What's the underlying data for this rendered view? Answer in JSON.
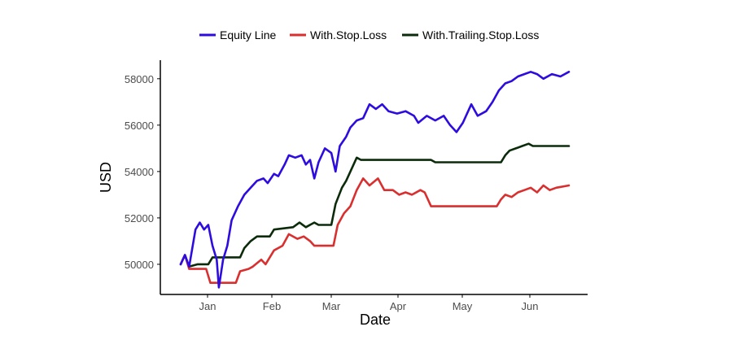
{
  "chart_data": {
    "type": "line",
    "xlabel": "Date",
    "ylabel": "USD",
    "x_ticks": [
      "Jan",
      "Feb",
      "Mar",
      "Apr",
      "May",
      "Jun"
    ],
    "y_ticks": [
      "50000",
      "52000",
      "54000",
      "56000",
      "58000"
    ],
    "x_range": [
      "2018-12-19",
      "2019-06-20"
    ],
    "ylim": [
      48700,
      58800
    ],
    "legend_position": "top",
    "grid": false,
    "series": [
      {
        "name": "Equity Line",
        "color": "#2d0ce0",
        "points": [
          [
            "2018-12-19",
            50000
          ],
          [
            "2018-12-21",
            50400
          ],
          [
            "2018-12-23",
            49900
          ],
          [
            "2018-12-26",
            51500
          ],
          [
            "2018-12-28",
            51800
          ],
          [
            "2018-12-30",
            51500
          ],
          [
            "2019-01-01",
            51700
          ],
          [
            "2019-01-03",
            50800
          ],
          [
            "2019-01-05",
            50200
          ],
          [
            "2019-01-06",
            49000
          ],
          [
            "2019-01-08",
            50200
          ],
          [
            "2019-01-10",
            50800
          ],
          [
            "2019-01-12",
            51900
          ],
          [
            "2019-01-15",
            52500
          ],
          [
            "2019-01-18",
            53000
          ],
          [
            "2019-01-21",
            53300
          ],
          [
            "2019-01-24",
            53600
          ],
          [
            "2019-01-27",
            53700
          ],
          [
            "2019-01-29",
            53500
          ],
          [
            "2019-02-01",
            53900
          ],
          [
            "2019-02-03",
            53800
          ],
          [
            "2019-02-06",
            54300
          ],
          [
            "2019-02-08",
            54700
          ],
          [
            "2019-02-11",
            54600
          ],
          [
            "2019-02-14",
            54700
          ],
          [
            "2019-02-16",
            54300
          ],
          [
            "2019-02-18",
            54500
          ],
          [
            "2019-02-20",
            53700
          ],
          [
            "2019-02-22",
            54400
          ],
          [
            "2019-02-25",
            55000
          ],
          [
            "2019-02-28",
            54800
          ],
          [
            "2019-03-02",
            54000
          ],
          [
            "2019-03-04",
            55100
          ],
          [
            "2019-03-07",
            55500
          ],
          [
            "2019-03-09",
            55900
          ],
          [
            "2019-03-12",
            56200
          ],
          [
            "2019-03-15",
            56300
          ],
          [
            "2019-03-18",
            56900
          ],
          [
            "2019-03-21",
            56700
          ],
          [
            "2019-03-24",
            56900
          ],
          [
            "2019-03-27",
            56600
          ],
          [
            "2019-03-31",
            56500
          ],
          [
            "2019-04-04",
            56600
          ],
          [
            "2019-04-08",
            56400
          ],
          [
            "2019-04-10",
            56100
          ],
          [
            "2019-04-14",
            56400
          ],
          [
            "2019-04-18",
            56200
          ],
          [
            "2019-04-22",
            56400
          ],
          [
            "2019-04-25",
            56000
          ],
          [
            "2019-04-28",
            55700
          ],
          [
            "2019-05-01",
            56100
          ],
          [
            "2019-05-03",
            56500
          ],
          [
            "2019-05-05",
            56900
          ],
          [
            "2019-05-08",
            56400
          ],
          [
            "2019-05-12",
            56600
          ],
          [
            "2019-05-15",
            57000
          ],
          [
            "2019-05-18",
            57500
          ],
          [
            "2019-05-21",
            57800
          ],
          [
            "2019-05-24",
            57900
          ],
          [
            "2019-05-27",
            58100
          ],
          [
            "2019-05-30",
            58200
          ],
          [
            "2019-06-02",
            58300
          ],
          [
            "2019-06-05",
            58200
          ],
          [
            "2019-06-08",
            58000
          ],
          [
            "2019-06-12",
            58200
          ],
          [
            "2019-06-16",
            58100
          ],
          [
            "2019-06-20",
            58300
          ]
        ]
      },
      {
        "name": "With.Stop.Loss",
        "color": "#d92f2f",
        "points": [
          [
            "2018-12-19",
            50000
          ],
          [
            "2018-12-21",
            50400
          ],
          [
            "2018-12-23",
            49800
          ],
          [
            "2018-12-31",
            49800
          ],
          [
            "2019-01-02",
            49200
          ],
          [
            "2019-01-14",
            49200
          ],
          [
            "2019-01-16",
            49700
          ],
          [
            "2019-01-20",
            49800
          ],
          [
            "2019-01-22",
            49900
          ],
          [
            "2019-01-26",
            50200
          ],
          [
            "2019-01-28",
            50000
          ],
          [
            "2019-02-01",
            50600
          ],
          [
            "2019-02-05",
            50800
          ],
          [
            "2019-02-08",
            51300
          ],
          [
            "2019-02-12",
            51100
          ],
          [
            "2019-02-15",
            51200
          ],
          [
            "2019-02-18",
            51000
          ],
          [
            "2019-02-20",
            50800
          ],
          [
            "2019-02-24",
            50800
          ],
          [
            "2019-03-01",
            50800
          ],
          [
            "2019-03-03",
            51700
          ],
          [
            "2019-03-06",
            52200
          ],
          [
            "2019-03-09",
            52500
          ],
          [
            "2019-03-12",
            53200
          ],
          [
            "2019-03-15",
            53700
          ],
          [
            "2019-03-18",
            53400
          ],
          [
            "2019-03-22",
            53700
          ],
          [
            "2019-03-25",
            53200
          ],
          [
            "2019-03-29",
            53200
          ],
          [
            "2019-04-01",
            53000
          ],
          [
            "2019-04-04",
            53100
          ],
          [
            "2019-04-07",
            53000
          ],
          [
            "2019-04-11",
            53200
          ],
          [
            "2019-04-13",
            53100
          ],
          [
            "2019-04-16",
            52500
          ],
          [
            "2019-05-17",
            52500
          ],
          [
            "2019-05-19",
            52800
          ],
          [
            "2019-05-21",
            53000
          ],
          [
            "2019-05-24",
            52900
          ],
          [
            "2019-05-27",
            53100
          ],
          [
            "2019-05-30",
            53200
          ],
          [
            "2019-06-02",
            53300
          ],
          [
            "2019-06-05",
            53100
          ],
          [
            "2019-06-08",
            53400
          ],
          [
            "2019-06-11",
            53200
          ],
          [
            "2019-06-14",
            53300
          ],
          [
            "2019-06-20",
            53400
          ]
        ]
      },
      {
        "name": "With.Trailing.Stop.Loss",
        "color": "#0b2b0b",
        "points": [
          [
            "2018-12-19",
            50000
          ],
          [
            "2018-12-21",
            50400
          ],
          [
            "2018-12-23",
            49900
          ],
          [
            "2018-12-27",
            50000
          ],
          [
            "2019-01-01",
            50000
          ],
          [
            "2019-01-03",
            50300
          ],
          [
            "2019-01-16",
            50300
          ],
          [
            "2019-01-18",
            50700
          ],
          [
            "2019-01-21",
            51000
          ],
          [
            "2019-01-24",
            51200
          ],
          [
            "2019-01-30",
            51200
          ],
          [
            "2019-02-01",
            51500
          ],
          [
            "2019-02-10",
            51600
          ],
          [
            "2019-02-13",
            51800
          ],
          [
            "2019-02-16",
            51600
          ],
          [
            "2019-02-20",
            51800
          ],
          [
            "2019-02-22",
            51700
          ],
          [
            "2019-02-28",
            51700
          ],
          [
            "2019-03-02",
            52600
          ],
          [
            "2019-03-05",
            53300
          ],
          [
            "2019-03-07",
            53600
          ],
          [
            "2019-03-09",
            54000
          ],
          [
            "2019-03-12",
            54600
          ],
          [
            "2019-03-14",
            54500
          ],
          [
            "2019-04-16",
            54500
          ],
          [
            "2019-04-18",
            54400
          ],
          [
            "2019-05-19",
            54400
          ],
          [
            "2019-05-21",
            54700
          ],
          [
            "2019-05-23",
            54900
          ],
          [
            "2019-05-26",
            55000
          ],
          [
            "2019-05-29",
            55100
          ],
          [
            "2019-06-01",
            55200
          ],
          [
            "2019-06-03",
            55100
          ],
          [
            "2019-06-20",
            55100
          ]
        ]
      }
    ]
  }
}
